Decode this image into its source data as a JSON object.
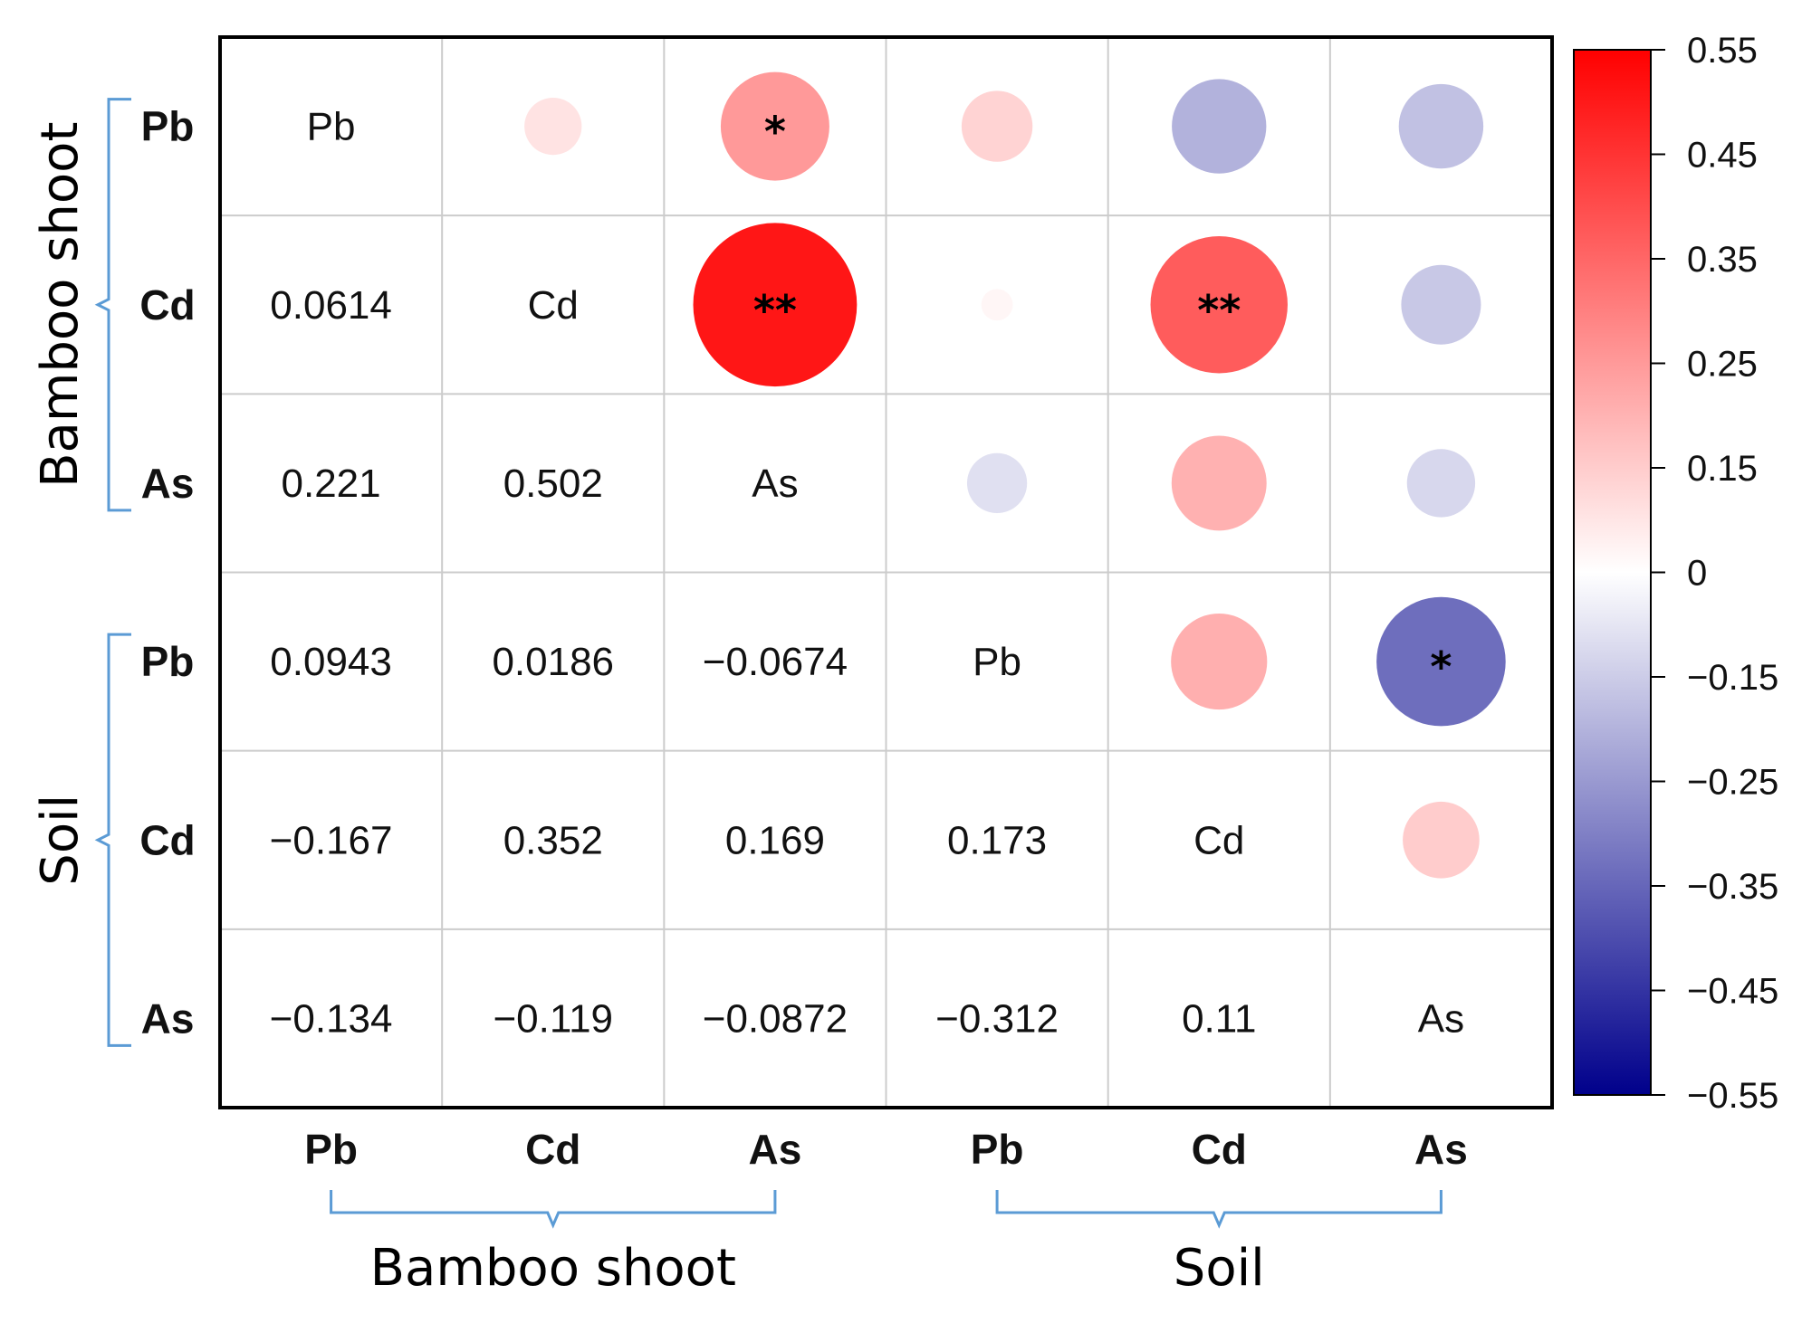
{
  "chart_data": {
    "type": "heatmap",
    "variables": [
      "Pb",
      "Cd",
      "As",
      "Pb",
      "Cd",
      "As"
    ],
    "groups": [
      {
        "name": "Bamboo shoot",
        "members": [
          "Pb",
          "Cd",
          "As"
        ]
      },
      {
        "name": "Soil",
        "members": [
          "Pb",
          "Cd",
          "As"
        ]
      }
    ],
    "diagonal_labels": [
      "Pb",
      "Cd",
      "As",
      "Pb",
      "Cd",
      "As"
    ],
    "lower_triangle_text": [
      {
        "row": 1,
        "col": 0,
        "text": "0.0614"
      },
      {
        "row": 2,
        "col": 0,
        "text": "0.221"
      },
      {
        "row": 2,
        "col": 1,
        "text": "0.502"
      },
      {
        "row": 3,
        "col": 0,
        "text": "0.0943"
      },
      {
        "row": 3,
        "col": 1,
        "text": "0.0186"
      },
      {
        "row": 3,
        "col": 2,
        "text": "−0.0674"
      },
      {
        "row": 4,
        "col": 0,
        "text": "−0.167"
      },
      {
        "row": 4,
        "col": 1,
        "text": "0.352"
      },
      {
        "row": 4,
        "col": 2,
        "text": "0.169"
      },
      {
        "row": 4,
        "col": 3,
        "text": "0.173"
      },
      {
        "row": 5,
        "col": 0,
        "text": "−0.134"
      },
      {
        "row": 5,
        "col": 1,
        "text": "−0.119"
      },
      {
        "row": 5,
        "col": 2,
        "text": "−0.0872"
      },
      {
        "row": 5,
        "col": 3,
        "text": "−0.312"
      },
      {
        "row": 5,
        "col": 4,
        "text": "0.11"
      }
    ],
    "upper_triangle_circles": [
      {
        "row": 0,
        "col": 1,
        "value": 0.0614,
        "sig": ""
      },
      {
        "row": 0,
        "col": 2,
        "value": 0.221,
        "sig": "*"
      },
      {
        "row": 0,
        "col": 3,
        "value": 0.0943,
        "sig": ""
      },
      {
        "row": 0,
        "col": 4,
        "value": -0.167,
        "sig": ""
      },
      {
        "row": 0,
        "col": 5,
        "value": -0.134,
        "sig": ""
      },
      {
        "row": 1,
        "col": 2,
        "value": 0.502,
        "sig": "**"
      },
      {
        "row": 1,
        "col": 3,
        "value": 0.0186,
        "sig": ""
      },
      {
        "row": 1,
        "col": 4,
        "value": 0.352,
        "sig": "**"
      },
      {
        "row": 1,
        "col": 5,
        "value": -0.119,
        "sig": ""
      },
      {
        "row": 2,
        "col": 3,
        "value": -0.0674,
        "sig": ""
      },
      {
        "row": 2,
        "col": 4,
        "value": 0.169,
        "sig": ""
      },
      {
        "row": 2,
        "col": 5,
        "value": -0.0872,
        "sig": ""
      },
      {
        "row": 3,
        "col": 4,
        "value": 0.173,
        "sig": ""
      },
      {
        "row": 3,
        "col": 5,
        "value": -0.312,
        "sig": "*"
      },
      {
        "row": 4,
        "col": 5,
        "value": 0.11,
        "sig": ""
      }
    ],
    "colorbar": {
      "range": [
        -0.55,
        0.55
      ],
      "ticks": [
        0.55,
        0.45,
        0.35,
        0.25,
        0.15,
        0,
        -0.15,
        -0.25,
        -0.35,
        -0.45,
        -0.55
      ],
      "tick_labels": [
        "0.55",
        "0.45",
        "0.35",
        "0.25",
        "0.15",
        "0",
        "−0.15",
        "−0.25",
        "−0.35",
        "−0.45",
        "−0.55"
      ],
      "colors": {
        "high": "#ff0000",
        "mid": "#ffffff",
        "low": "#00008b"
      }
    },
    "circle_scale_max": 0.55,
    "grid": true,
    "legend": "right"
  },
  "colors": {
    "bracket": "#5b9bd5",
    "grid": "#cccccc",
    "border": "#000000"
  }
}
